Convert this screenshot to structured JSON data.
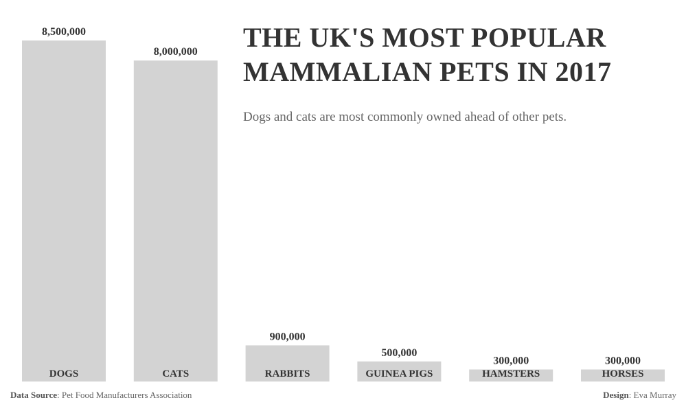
{
  "chart_data": {
    "type": "bar",
    "title": "THE UK'S MOST POPULAR MAMMALIAN PETS IN 2017",
    "subtitle": "Dogs and cats are most commonly owned ahead of other pets.",
    "categories": [
      "DOGS",
      "CATS",
      "RABBITS",
      "GUINEA PIGS",
      "HAMSTERS",
      "HORSES"
    ],
    "values": [
      8500000,
      8000000,
      900000,
      500000,
      300000,
      300000
    ],
    "value_labels": [
      "8,500,000",
      "8,000,000",
      "900,000",
      "500,000",
      "300,000",
      "300,000"
    ],
    "xlabel": "",
    "ylabel": "",
    "ylim": [
      0,
      8500000
    ],
    "grid": false,
    "bar_color": "#d3d3d3",
    "text_color": "#333333"
  },
  "footer": {
    "source_label": "Data Source",
    "source_value": ": Pet Food Manufacturers Association",
    "design_label": "Design",
    "design_value": ": Eva Murray"
  }
}
